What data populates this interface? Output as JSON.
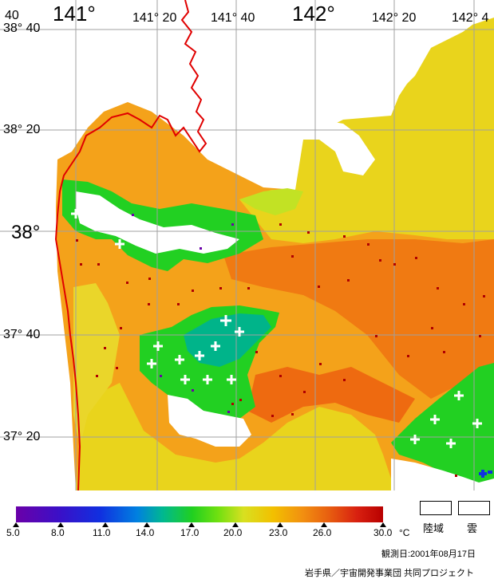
{
  "map": {
    "lon_labels": [
      {
        "text": "141°",
        "kind": "major"
      },
      {
        "text": "141° 20",
        "kind": "minor"
      },
      {
        "text": "141° 40",
        "kind": "minor"
      },
      {
        "text": "142°",
        "kind": "major"
      },
      {
        "text": "142° 20",
        "kind": "minor"
      },
      {
        "text": "142° 4",
        "kind": "minor"
      }
    ],
    "lat_labels": [
      {
        "text": "38° 40",
        "kind": "minor"
      },
      {
        "text": "38° 20",
        "kind": "minor"
      },
      {
        "text": "38°",
        "kind": "major"
      },
      {
        "text": "37° 40",
        "kind": "minor"
      },
      {
        "text": "37° 20",
        "kind": "minor"
      }
    ],
    "corner_label": "40",
    "colors": {
      "sea_warm": "#f4a21a",
      "sea_yellow": "#e9d41c",
      "sea_hot": "#f07010",
      "sea_cool": "#b8e022",
      "green": "#22d022",
      "teal": "#00b48a",
      "coast": "#e00000",
      "land": "#ffffff",
      "grid": "#a0a0a0"
    }
  },
  "legend": {
    "ticks": [
      "5.0",
      "8.0",
      "11.0",
      "14.0",
      "17.0",
      "20.0",
      "23.0",
      "26.0",
      "30.0"
    ],
    "unit": "°C",
    "land_label": "陸域",
    "cloud_label": "雲"
  },
  "footer": {
    "observed": "観測日:2001年08月17日",
    "credit": "岩手県／宇宙開発事業団 共同プロジェクト"
  }
}
